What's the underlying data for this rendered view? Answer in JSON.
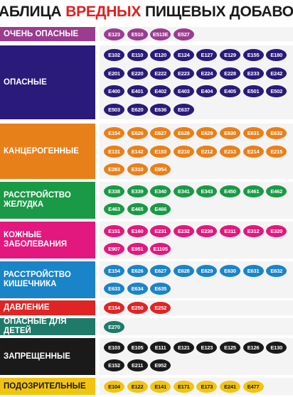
{
  "title": {
    "part1": "ТАБЛИЦА",
    "part2": "ВРЕДНЫХ",
    "part3": "ПИЩЕВЫХ ДОБАВОК"
  },
  "categories": [
    {
      "id": "very-dangerous",
      "label": "ОЧЕНЬ ОПАСНЫЕ",
      "color": "#9b3c8f",
      "codes": [
        "E123",
        "E510",
        "E513E",
        "E527"
      ]
    },
    {
      "id": "dangerous",
      "label": "ОПАСНЫЕ",
      "color": "#2a1a7a",
      "codes": [
        "E102",
        "E110",
        "E120",
        "E124",
        "E127",
        "E129",
        "E155",
        "E180",
        "E201",
        "E220",
        "E222",
        "E223",
        "E224",
        "E228",
        "E233",
        "E242",
        "E400",
        "E401",
        "E402",
        "E403",
        "E404",
        "E405",
        "E501",
        "E502",
        "E503",
        "E620",
        "E636",
        "E637"
      ]
    },
    {
      "id": "carcinogenic",
      "label": "КАНЦЕРОГЕННЫЕ",
      "color": "#e8801a",
      "codes": [
        "E154",
        "E626",
        "E627",
        "E628",
        "E629",
        "E630",
        "E631",
        "E632",
        "E131",
        "E142",
        "E153",
        "E210",
        "E212",
        "E213",
        "E214",
        "E215",
        "E283",
        "E310",
        "E954"
      ]
    },
    {
      "id": "stomach",
      "label": "РАССТРОЙСТВО ЖЕЛУДКА",
      "color": "#1a9a46",
      "codes": [
        "E338",
        "E339",
        "E340",
        "E341",
        "E343",
        "E450",
        "E461",
        "E462",
        "E463",
        "E465",
        "E466"
      ]
    },
    {
      "id": "skin",
      "label": "КОЖНЫЕ ЗАБОЛЕВАНИЯ",
      "color": "#e2187e",
      "codes": [
        "E151",
        "E160",
        "E231",
        "E232",
        "E239",
        "E311",
        "E312",
        "E320",
        "E907",
        "E951",
        "E1105"
      ]
    },
    {
      "id": "intestine",
      "label": "РАССТРОЙСТВО КИШЕЧНИКА",
      "color": "#1a84c8",
      "codes": [
        "E154",
        "E626",
        "E627",
        "E628",
        "E629",
        "E630",
        "E631",
        "E632",
        "E633",
        "E634",
        "E635"
      ]
    },
    {
      "id": "pressure",
      "label": "ДАВЛЕНИЕ",
      "color": "#e02424",
      "codes": [
        "E154",
        "E250",
        "E252"
      ]
    },
    {
      "id": "children",
      "label": "ОПАСНЫЕ ДЛЯ ДЕТЕЙ",
      "color": "#1f7a6a",
      "codes": [
        "E270"
      ]
    },
    {
      "id": "forbidden",
      "label": "ЗАПРЕЩЕННЫЕ",
      "color": "#1a1a1a",
      "codes": [
        "E103",
        "E105",
        "E111",
        "E121",
        "E123",
        "E125",
        "E126",
        "E130",
        "E152",
        "E211",
        "E952"
      ]
    },
    {
      "id": "suspicious",
      "label": "ПОДОЗРИТЕЛЬНЫЕ",
      "color": "#f2c40e",
      "text_color": "#1a1a1a",
      "codes": [
        "E104",
        "E122",
        "E141",
        "E171",
        "E173",
        "E241",
        "E477"
      ]
    }
  ]
}
